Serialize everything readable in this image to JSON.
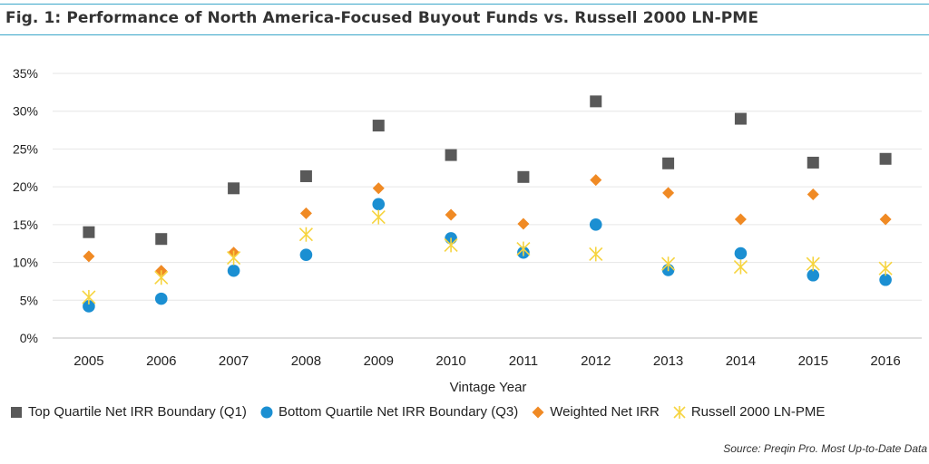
{
  "chart_data": {
    "type": "scatter",
    "title": "Fig. 1: Performance of North America-Focused Buyout Funds vs. Russell 2000 LN-PME",
    "xlabel": "Vintage Year",
    "ylabel": "",
    "ylim": [
      0,
      35
    ],
    "yticks": [
      "0%",
      "5%",
      "10%",
      "15%",
      "20%",
      "25%",
      "30%",
      "35%"
    ],
    "ytick_values": [
      0,
      5,
      10,
      15,
      20,
      25,
      30,
      35
    ],
    "categories": [
      "2005",
      "2006",
      "2007",
      "2008",
      "2009",
      "2010",
      "2011",
      "2012",
      "2013",
      "2014",
      "2015",
      "2016"
    ],
    "grid": true,
    "legend_position": "bottom",
    "series": [
      {
        "name": "Top Quartile Net IRR Boundary (Q1)",
        "marker": "square",
        "color": "#595959",
        "values": [
          14.0,
          13.1,
          19.8,
          21.4,
          28.1,
          24.2,
          21.3,
          31.3,
          23.1,
          29.0,
          23.2,
          23.7
        ]
      },
      {
        "name": "Bottom Quartile Net IRR Boundary (Q3)",
        "marker": "circle",
        "color": "#1b8fd2",
        "values": [
          4.2,
          5.2,
          8.9,
          11.0,
          17.7,
          13.2,
          11.3,
          15.0,
          9.0,
          11.2,
          8.3,
          7.7
        ]
      },
      {
        "name": "Weighted Net IRR",
        "marker": "diamond",
        "color": "#f08a24",
        "values": [
          10.8,
          8.9,
          11.3,
          16.5,
          19.8,
          16.3,
          15.1,
          20.9,
          19.2,
          15.7,
          19.0,
          15.7
        ]
      },
      {
        "name": "Russell 2000 LN-PME",
        "marker": "star",
        "color": "#f6d43f",
        "values": [
          5.4,
          8.0,
          10.6,
          13.7,
          16.0,
          12.3,
          11.8,
          11.1,
          9.8,
          9.4,
          9.8,
          9.2
        ]
      }
    ],
    "source": "Source: Preqin Pro. Most Up-to-Date Data"
  }
}
